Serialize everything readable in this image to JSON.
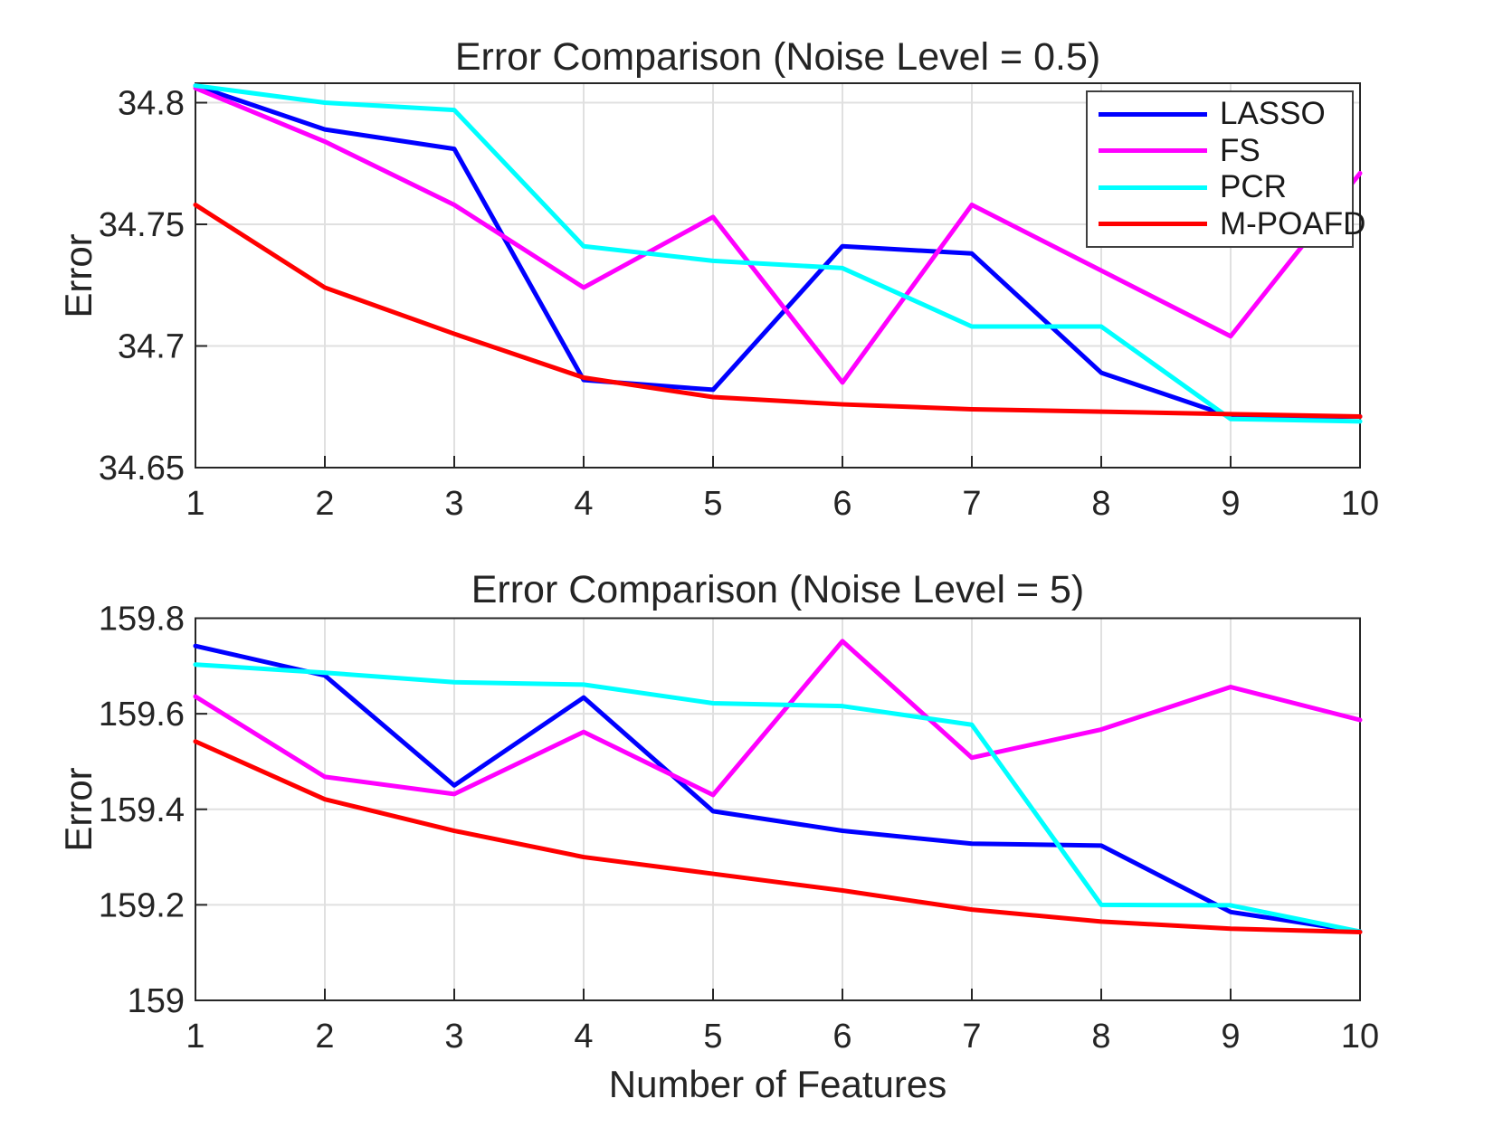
{
  "style": {
    "background": "#ffffff",
    "axis_color": "#262626",
    "grid_color": "#e0e0e0",
    "text_color": "#242424",
    "line_width": 5
  },
  "legend": {
    "position": "northeast",
    "items": [
      "LASSO",
      "FS",
      "PCR",
      "M-POAFD"
    ]
  },
  "chart_data": [
    {
      "type": "line",
      "title": "Error Comparison (Noise Level = 0.5)",
      "xlabel": "",
      "ylabel": "Error",
      "x": [
        1,
        2,
        3,
        4,
        5,
        6,
        7,
        8,
        9,
        10
      ],
      "xlim": [
        1,
        10
      ],
      "ylim": [
        34.65,
        34.808
      ],
      "xtick_labels": [
        "1",
        "2",
        "3",
        "4",
        "5",
        "6",
        "7",
        "8",
        "9",
        "10"
      ],
      "ytick_values": [
        34.65,
        34.7,
        34.75,
        34.8
      ],
      "ytick_labels": [
        "34.65",
        "34.7",
        "34.75",
        "34.8"
      ],
      "grid": true,
      "legend_position": "northeast",
      "series": [
        {
          "name": "LASSO",
          "color": "#0000FF",
          "values": [
            34.807,
            34.789,
            34.781,
            34.686,
            34.682,
            34.741,
            34.738,
            34.689,
            34.671,
            34.671
          ]
        },
        {
          "name": "FS",
          "color": "#FF00FF",
          "values": [
            34.806,
            34.784,
            34.758,
            34.724,
            34.753,
            34.685,
            34.758,
            34.731,
            34.704,
            34.771
          ]
        },
        {
          "name": "PCR",
          "color": "#00FFFF",
          "values": [
            34.807,
            34.8,
            34.797,
            34.741,
            34.735,
            34.732,
            34.708,
            34.708,
            34.67,
            34.669
          ]
        },
        {
          "name": "M-POAFD",
          "color": "#FF0000",
          "values": [
            34.758,
            34.724,
            34.705,
            34.687,
            34.679,
            34.676,
            34.674,
            34.673,
            34.672,
            34.671
          ]
        }
      ]
    },
    {
      "type": "line",
      "title": "Error Comparison (Noise Level = 5)",
      "xlabel": "Number of Features",
      "ylabel": "Error",
      "x": [
        1,
        2,
        3,
        4,
        5,
        6,
        7,
        8,
        9,
        10
      ],
      "xlim": [
        1,
        10
      ],
      "ylim": [
        159,
        159.8
      ],
      "xtick_labels": [
        "1",
        "2",
        "3",
        "4",
        "5",
        "6",
        "7",
        "8",
        "9",
        "10"
      ],
      "ytick_values": [
        159,
        159.2,
        159.4,
        159.6,
        159.8
      ],
      "ytick_labels": [
        "159",
        "159.2",
        "159.4",
        "159.6",
        "159.8"
      ],
      "grid": true,
      "series": [
        {
          "name": "LASSO",
          "color": "#0000FF",
          "values": [
            159.742,
            159.68,
            159.45,
            159.634,
            159.396,
            159.355,
            159.328,
            159.324,
            159.185,
            159.144
          ]
        },
        {
          "name": "FS",
          "color": "#FF00FF",
          "values": [
            159.636,
            159.468,
            159.432,
            159.562,
            159.43,
            159.752,
            159.508,
            159.567,
            159.656,
            159.587
          ]
        },
        {
          "name": "PCR",
          "color": "#00FFFF",
          "values": [
            159.703,
            159.686,
            159.666,
            159.661,
            159.622,
            159.616,
            159.577,
            159.2,
            159.199,
            159.144
          ]
        },
        {
          "name": "M-POAFD",
          "color": "#FF0000",
          "values": [
            159.542,
            159.421,
            159.355,
            159.3,
            159.265,
            159.23,
            159.19,
            159.165,
            159.15,
            159.143
          ]
        }
      ]
    }
  ]
}
